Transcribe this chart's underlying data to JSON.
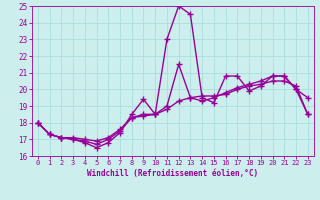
{
  "xlabel": "Windchill (Refroidissement éolien,°C)",
  "xlim": [
    -0.5,
    23.5
  ],
  "ylim": [
    16,
    25
  ],
  "xticks": [
    0,
    1,
    2,
    3,
    4,
    5,
    6,
    7,
    8,
    9,
    10,
    11,
    12,
    13,
    14,
    15,
    16,
    17,
    18,
    19,
    20,
    21,
    22,
    23
  ],
  "yticks": [
    16,
    17,
    18,
    19,
    20,
    21,
    22,
    23,
    24,
    25
  ],
  "background_color": "#cceeed",
  "grid_color": "#aadddd",
  "line_color": "#990099",
  "line_width": 1.0,
  "marker": "+",
  "marker_size": 4,
  "marker_lw": 1.0,
  "lines": [
    [
      18.0,
      17.3,
      17.1,
      17.0,
      16.8,
      16.5,
      16.8,
      17.4,
      18.5,
      19.4,
      18.5,
      23.0,
      25.0,
      24.5,
      19.5,
      19.2,
      20.8,
      20.8,
      19.9,
      20.2,
      20.8,
      20.8,
      20.0,
      19.5
    ],
    [
      18.0,
      17.3,
      17.1,
      17.0,
      16.9,
      16.7,
      17.0,
      17.5,
      18.3,
      18.5,
      18.5,
      19.0,
      21.5,
      19.5,
      19.3,
      19.5,
      19.8,
      20.1,
      20.3,
      20.5,
      20.8,
      20.8,
      20.0,
      18.5
    ],
    [
      18.0,
      17.3,
      17.1,
      17.1,
      17.0,
      16.9,
      17.1,
      17.6,
      18.3,
      18.4,
      18.5,
      18.8,
      19.3,
      19.5,
      19.6,
      19.6,
      19.7,
      20.0,
      20.2,
      20.3,
      20.5,
      20.5,
      20.2,
      18.5
    ]
  ]
}
